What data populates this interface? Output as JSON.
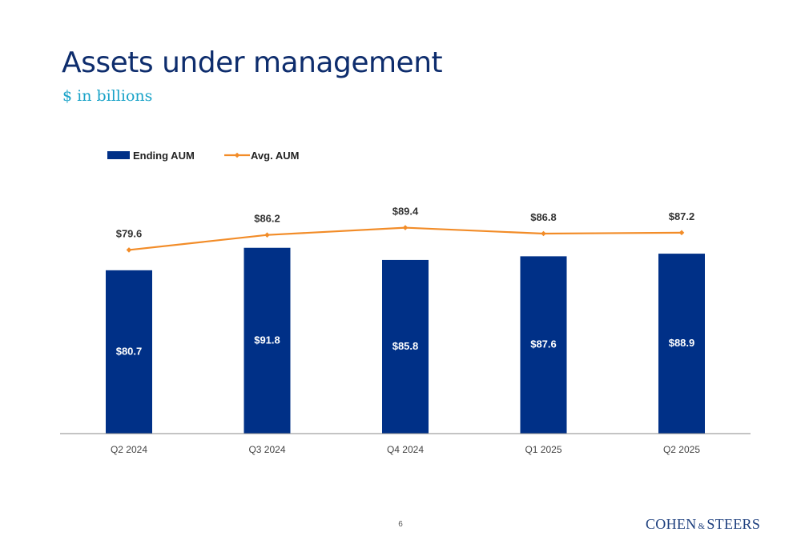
{
  "slide": {
    "title": "Assets under management",
    "subtitle": "$ in billions",
    "page_number": "6",
    "logo": {
      "left": "COHEN",
      "amp": "&",
      "right": "STEERS"
    }
  },
  "colors": {
    "bar": "#003087",
    "line": "#f28c28",
    "title": "#0e2d6d",
    "subtitle": "#1aa3c8"
  },
  "chart_data": {
    "type": "bar",
    "categories": [
      "Q2 2024",
      "Q3 2024",
      "Q4 2024",
      "Q1 2025",
      "Q2 2025"
    ],
    "series": [
      {
        "name": "Ending AUM",
        "type": "bar",
        "values": [
          80.7,
          91.8,
          85.8,
          87.6,
          88.9
        ],
        "labels": [
          "$80.7",
          "$91.8",
          "$85.8",
          "$87.6",
          "$88.9"
        ]
      },
      {
        "name": "Avg. AUM",
        "type": "line",
        "values": [
          79.6,
          86.2,
          89.4,
          86.8,
          87.2
        ],
        "labels": [
          "$79.6",
          "$86.2",
          "$89.4",
          "$86.8",
          "$87.2"
        ]
      }
    ],
    "legend": "top-left",
    "grid": false,
    "ylim": [
      0,
      100
    ]
  }
}
